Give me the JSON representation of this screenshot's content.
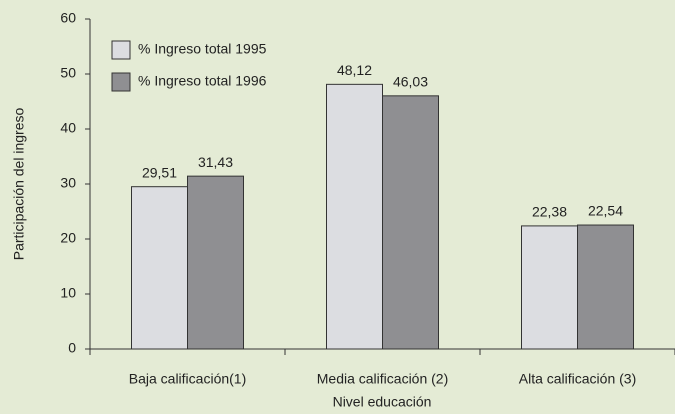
{
  "chart_data": {
    "type": "bar",
    "x_label": "Nivel educación",
    "y_label": "Participación del ingreso",
    "categories": [
      "Baja calificación(1)",
      "Media calificación (2)",
      "Alta calificación (3)"
    ],
    "series": [
      {
        "name": "% Ingreso total 1995",
        "color": "#dcdde1",
        "values": [
          29.51,
          48.12,
          22.38
        ],
        "value_labels": [
          "29,51",
          "48,12",
          "22,38"
        ]
      },
      {
        "name": "% Ingreso total 1996",
        "color": "#8f8f92",
        "values": [
          31.43,
          46.03,
          22.54
        ],
        "value_labels": [
          "31,43",
          "46,03",
          "22,54"
        ]
      }
    ],
    "ylim": [
      0,
      60
    ],
    "yticks": [
      0,
      10,
      20,
      30,
      40,
      50,
      60
    ],
    "legend": "upper left"
  }
}
